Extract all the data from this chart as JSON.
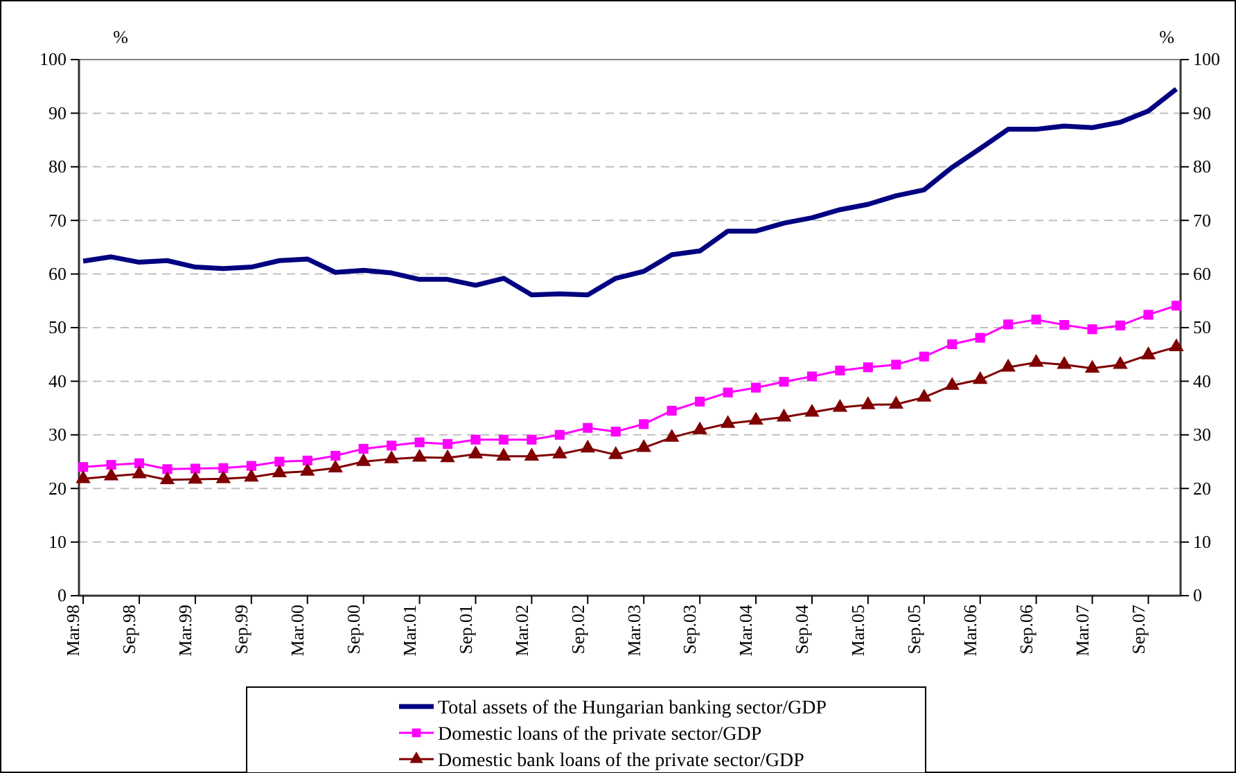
{
  "chart_data": {
    "type": "line",
    "ylabel": "%",
    "y2label": "%",
    "categories": [
      "Mar.98",
      null,
      "Sep.98",
      null,
      "Mar.99",
      null,
      "Sep.99",
      null,
      "Mar.00",
      null,
      "Sep.00",
      null,
      "Mar.01",
      null,
      "Sep.01",
      null,
      "Mar.02",
      null,
      "Sep.02",
      null,
      "Mar.03",
      null,
      "Sep.03",
      null,
      "Mar.04",
      null,
      "Sep.04",
      null,
      "Mar.05",
      null,
      "Sep.05",
      null,
      "Mar.06",
      null,
      "Sep.06",
      null,
      "Mar.07",
      null,
      "Sep.07",
      null
    ],
    "series": [
      {
        "name": "Total assets of the Hungarian banking sector/GDP",
        "color": "#000080",
        "marker": "none",
        "values": [
          62.4,
          63.2,
          62.2,
          62.5,
          61.3,
          61.0,
          61.3,
          62.5,
          62.8,
          60.3,
          60.7,
          60.2,
          59.0,
          59.0,
          57.9,
          59.2,
          56.1,
          56.3,
          56.1,
          59.2,
          60.5,
          63.6,
          64.3,
          68.0,
          68.0,
          69.5,
          70.5,
          72.0,
          73.0,
          74.6,
          75.7,
          79.9,
          83.4,
          87.0,
          87.0,
          87.6,
          87.3,
          88.3,
          90.4,
          94.5
        ]
      },
      {
        "name": "Domestic loans of the private sector/GDP",
        "color": "#ff00ff",
        "marker": "square",
        "values": [
          24.0,
          24.4,
          24.7,
          23.6,
          23.7,
          23.8,
          24.2,
          25.0,
          25.2,
          26.1,
          27.4,
          28.0,
          28.6,
          28.3,
          29.1,
          29.1,
          29.1,
          30.0,
          31.3,
          30.6,
          32.0,
          34.5,
          36.2,
          37.9,
          38.8,
          39.9,
          40.9,
          42.0,
          42.6,
          43.1,
          44.6,
          46.9,
          48.1,
          50.6,
          51.5,
          50.5,
          49.7,
          50.4,
          52.4,
          54.1
        ]
      },
      {
        "name": "Domestic bank loans of the private sector/GDP",
        "color": "#800000",
        "marker": "triangle",
        "values": [
          21.8,
          22.3,
          22.7,
          21.6,
          21.7,
          21.8,
          22.1,
          22.9,
          23.2,
          23.8,
          25.0,
          25.5,
          25.8,
          25.7,
          26.4,
          26.0,
          26.0,
          26.4,
          27.5,
          26.3,
          27.6,
          29.5,
          30.9,
          32.1,
          32.7,
          33.3,
          34.2,
          35.1,
          35.6,
          35.7,
          37.0,
          39.2,
          40.3,
          42.6,
          43.5,
          43.1,
          42.4,
          43.1,
          44.9,
          46.4
        ]
      }
    ],
    "ylim": [
      0,
      100
    ],
    "yticks": [
      0,
      10,
      20,
      30,
      40,
      50,
      60,
      70,
      80,
      90,
      100
    ],
    "y2lim": [
      0,
      100
    ],
    "y2ticks": [
      0,
      10,
      20,
      30,
      40,
      50,
      60,
      70,
      80,
      90,
      100
    ],
    "grid": "y",
    "legend": "bottom"
  }
}
